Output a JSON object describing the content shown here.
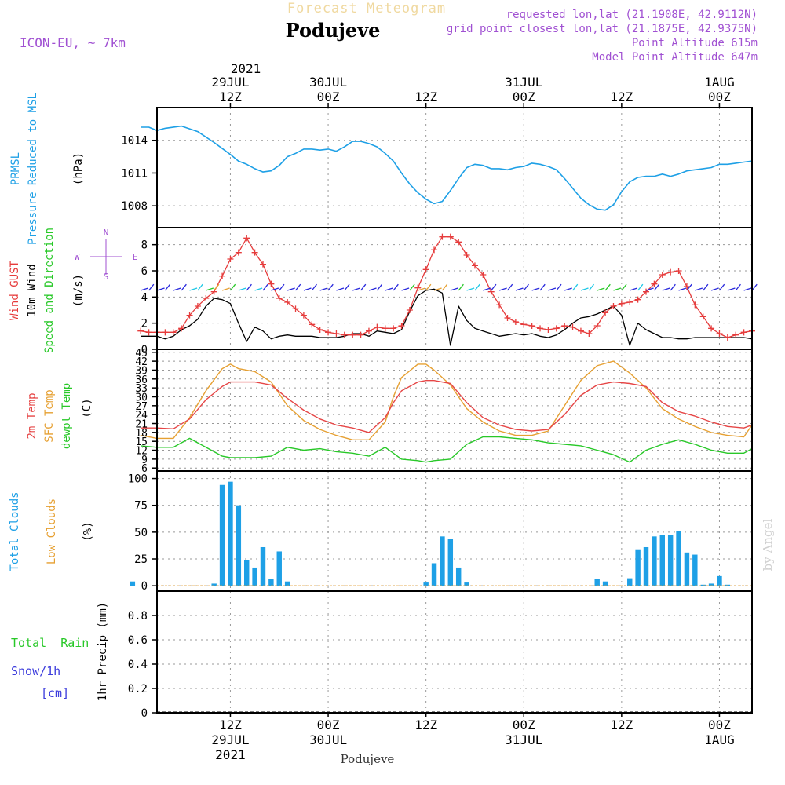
{
  "header": {
    "title_faint": "Forecast Meteogram",
    "station": "Podujeve",
    "model": "ICON-EU, ~ 7km",
    "requested": "requested lon,lat (21.1908E, 42.9112N)",
    "gridpoint": "grid point closest lon,lat (21.1875E, 42.9375N)",
    "point_alt": "Point Altitude 615m",
    "model_alt": "Model Point Altitude 647m",
    "footer_station": "Podujeve",
    "credit": "by Angel"
  },
  "colors": {
    "pressure": "#1ea0e6",
    "gust": "#e63c3c",
    "wind": "#000000",
    "temp2m": "#e64646",
    "sfc": "#e6a032",
    "dewpt": "#28c828",
    "clouds": "#1ea0e6",
    "low_clouds": "#e6a032",
    "rain": "#28c828",
    "snow": "#3c3cdc",
    "meta": "#a050d2"
  },
  "time_axis": {
    "top_year": "2021",
    "top": [
      {
        "hour": 12,
        "l1": "29JUL",
        "l2": "12Z"
      },
      {
        "hour": 24,
        "l1": "30JUL",
        "l2": "00Z"
      },
      {
        "hour": 36,
        "l1": "",
        "l2": "12Z"
      },
      {
        "hour": 48,
        "l1": "31JUL",
        "l2": "00Z"
      },
      {
        "hour": 60,
        "l1": "",
        "l2": "12Z"
      },
      {
        "hour": 72,
        "l1": "1AUG",
        "l2": "00Z"
      }
    ],
    "bottom": [
      {
        "hour": 12,
        "l1": "12Z",
        "l2": "29JUL",
        "l3": "2021"
      },
      {
        "hour": 24,
        "l1": "00Z",
        "l2": "30JUL",
        "l3": ""
      },
      {
        "hour": 36,
        "l1": "12Z",
        "l2": "",
        "l3": ""
      },
      {
        "hour": 48,
        "l1": "00Z",
        "l2": "31JUL",
        "l3": ""
      },
      {
        "hour": 60,
        "l1": "12Z",
        "l2": "",
        "l3": ""
      },
      {
        "hour": 72,
        "l1": "00Z",
        "l2": "1AUG",
        "l3": ""
      }
    ]
  },
  "panels": {
    "pressure": {
      "label1": "PRMSL",
      "label2": "Pressure Reduced to MSL",
      "unit": "(hPa)"
    },
    "wind": {
      "label_gust": "Wind GUST",
      "label_wind": "10m Wind",
      "label_dir": "Speed and Direction",
      "unit": "(m/s)",
      "compass_n": "N",
      "compass_e": "E",
      "compass_s": "S",
      "compass_w": "W"
    },
    "temp": {
      "label_2m": "2m Temp",
      "label_sfc": "SFC Temp",
      "label_dew": "dewpt Temp",
      "unit": "(C)"
    },
    "clouds": {
      "label_total": "Total Clouds",
      "label_low": "Low Clouds",
      "unit": "(%)"
    },
    "precip": {
      "label_rain": "Total  Rain",
      "label_snow": "Snow/1h",
      "label_cm": "[cm]",
      "unit": "1hr Precip (mm)"
    }
  },
  "chart_data": [
    {
      "type": "line",
      "name": "pressure",
      "ylim": [
        1006,
        1017
      ],
      "yticks": [
        1008,
        1011,
        1014
      ],
      "x": [
        1,
        2,
        3,
        4,
        6,
        8,
        10,
        12,
        13,
        14,
        15,
        16,
        17,
        18,
        19,
        20,
        21,
        22,
        23,
        24,
        25,
        26,
        27,
        28,
        29,
        30,
        31,
        32,
        33,
        34,
        35,
        36,
        37,
        38,
        39,
        40,
        41,
        42,
        43,
        44,
        45,
        46,
        47,
        48,
        49,
        50,
        51,
        52,
        53,
        54,
        55,
        56,
        57,
        58,
        59,
        60,
        61,
        62,
        63,
        64,
        65,
        66,
        67,
        68,
        69,
        70,
        71,
        72,
        73,
        74,
        75,
        76
      ],
      "series": [
        {
          "values": [
            1015.2,
            1015.2,
            1014.9,
            1015.1,
            1015.3,
            1014.8,
            1013.8,
            1012.7,
            1012.1,
            1011.8,
            1011.4,
            1011.1,
            1011.2,
            1011.7,
            1012.5,
            1012.8,
            1013.2,
            1013.2,
            1013.1,
            1013.2,
            1013.0,
            1013.4,
            1013.9,
            1013.9,
            1013.7,
            1013.4,
            1012.8,
            1012.1,
            1011.0,
            1010.0,
            1009.2,
            1008.6,
            1008.2,
            1008.4,
            1009.4,
            1010.5,
            1011.5,
            1011.8,
            1011.7,
            1011.4,
            1011.4,
            1011.3,
            1011.5,
            1011.6,
            1011.9,
            1011.8,
            1011.6,
            1011.3,
            1010.5,
            1009.6,
            1008.7,
            1008.1,
            1007.7,
            1007.6,
            1008.1,
            1009.3,
            1010.2,
            1010.6,
            1010.7,
            1010.7,
            1010.9,
            1010.7,
            1010.9,
            1011.2,
            1011.3,
            1011.4,
            1011.5,
            1011.8,
            1011.8,
            1011.9,
            1012.0,
            1012.1
          ]
        }
      ]
    },
    {
      "type": "line",
      "name": "wind",
      "ylim": [
        0,
        9.3
      ],
      "yticks": [
        0,
        2,
        4,
        6,
        8
      ],
      "x": [
        1,
        2,
        3,
        4,
        5,
        6,
        7,
        8,
        9,
        10,
        11,
        12,
        13,
        14,
        15,
        16,
        17,
        18,
        19,
        20,
        21,
        22,
        23,
        24,
        25,
        26,
        27,
        28,
        29,
        30,
        31,
        32,
        33,
        34,
        35,
        36,
        37,
        38,
        39,
        40,
        41,
        42,
        43,
        44,
        45,
        46,
        47,
        48,
        49,
        50,
        51,
        52,
        53,
        54,
        55,
        56,
        57,
        58,
        59,
        60,
        61,
        62,
        63,
        64,
        65,
        66,
        67,
        68,
        69,
        70,
        71,
        72,
        73,
        74,
        75,
        76
      ],
      "series": [
        {
          "name": "gust",
          "values": [
            1.4,
            1.3,
            1.3,
            1.3,
            1.3,
            1.6,
            2.6,
            3.3,
            3.9,
            4.4,
            5.6,
            6.9,
            7.4,
            8.5,
            7.4,
            6.5,
            5.0,
            3.9,
            3.6,
            3.1,
            2.6,
            1.9,
            1.5,
            1.3,
            1.2,
            1.1,
            1.1,
            1.1,
            1.4,
            1.7,
            1.6,
            1.6,
            1.8,
            3.0,
            4.7,
            6.1,
            7.6,
            8.6,
            8.6,
            8.2,
            7.2,
            6.4,
            5.7,
            4.4,
            3.4,
            2.4,
            2.1,
            1.9,
            1.8,
            1.6,
            1.5,
            1.6,
            1.8,
            1.7,
            1.4,
            1.2,
            1.8,
            2.8,
            3.3,
            3.5,
            3.6,
            3.8,
            4.4,
            5.0,
            5.7,
            5.9,
            6.0,
            4.8,
            3.4,
            2.5,
            1.6,
            1.2,
            0.9,
            1.1,
            1.3,
            1.4
          ]
        },
        {
          "name": "wind",
          "values": [
            1.0,
            1.0,
            1.0,
            0.8,
            1.0,
            1.5,
            1.8,
            2.3,
            3.3,
            3.9,
            3.8,
            3.5,
            2.0,
            0.6,
            1.7,
            1.4,
            0.8,
            1.0,
            1.1,
            1.0,
            1.0,
            1.0,
            0.9,
            0.9,
            0.9,
            1.0,
            1.2,
            1.2,
            1.0,
            1.4,
            1.3,
            1.2,
            1.5,
            2.9,
            4.1,
            4.5,
            4.6,
            4.3,
            0.3,
            3.3,
            2.2,
            1.6,
            1.4,
            1.2,
            1.0,
            1.1,
            1.2,
            1.1,
            1.2,
            1.0,
            0.9,
            1.1,
            1.5,
            2.0,
            2.4,
            2.5,
            2.7,
            3.0,
            3.3,
            2.6,
            0.3,
            2.0,
            1.5,
            1.2,
            0.9,
            0.9,
            0.8,
            0.8,
            0.9,
            0.9,
            0.9,
            0.9,
            0.9,
            0.9,
            0.9,
            0.8
          ]
        }
      ]
    },
    {
      "type": "line",
      "name": "temperature",
      "ylim": [
        5,
        46
      ],
      "yticks": [
        6,
        9,
        12,
        15,
        18,
        21,
        24,
        27,
        30,
        33,
        36,
        39,
        42,
        45
      ],
      "x": [
        1,
        3,
        5,
        7,
        9,
        11,
        12,
        13,
        15,
        17,
        19,
        21,
        23,
        25,
        27,
        29,
        31,
        32,
        33,
        35,
        36,
        37,
        39,
        41,
        43,
        45,
        47,
        49,
        51,
        53,
        55,
        57,
        59,
        61,
        63,
        65,
        67,
        69,
        71,
        73,
        75,
        76
      ],
      "series": [
        {
          "name": "2m Temp",
          "values": [
            19.5,
            19.5,
            19.2,
            22.5,
            29.0,
            33.5,
            35.0,
            35.0,
            35.0,
            34.0,
            29.5,
            25.5,
            22.5,
            20.5,
            19.5,
            18.0,
            23.0,
            28.0,
            32.0,
            35.0,
            35.5,
            35.5,
            34.5,
            28.0,
            23.0,
            20.5,
            19.0,
            18.5,
            19.0,
            24.0,
            30.5,
            34.0,
            35.0,
            34.5,
            33.5,
            28.0,
            25.0,
            23.5,
            21.5,
            20.0,
            19.5,
            20.5
          ]
        },
        {
          "name": "SFC Temp",
          "values": [
            17.0,
            16.0,
            16.0,
            23.0,
            32.0,
            39.5,
            41.0,
            39.5,
            38.5,
            35.0,
            27.0,
            22.0,
            19.0,
            17.0,
            15.5,
            15.5,
            21.5,
            30.0,
            36.5,
            41.0,
            41.0,
            39.0,
            34.0,
            26.0,
            21.5,
            18.5,
            17.0,
            17.0,
            18.5,
            27.0,
            35.5,
            40.5,
            42.0,
            38.0,
            33.0,
            26.0,
            22.5,
            20.0,
            18.0,
            17.0,
            16.5,
            20.5
          ]
        },
        {
          "name": "dewpt Temp",
          "values": [
            13.5,
            13.0,
            13.0,
            16.0,
            13.0,
            10.0,
            9.5,
            9.5,
            9.5,
            10.0,
            13.0,
            12.0,
            12.5,
            11.5,
            11.0,
            10.0,
            13.0,
            11.0,
            9.0,
            8.5,
            8.0,
            8.5,
            9.0,
            14.0,
            16.5,
            16.5,
            16.0,
            15.5,
            14.5,
            14.0,
            13.5,
            12.0,
            10.5,
            8.0,
            12.0,
            14.0,
            15.5,
            14.0,
            12.0,
            11.0,
            11.0,
            12.5
          ]
        }
      ]
    },
    {
      "type": "bar",
      "name": "clouds",
      "ylim": [
        -5,
        107
      ],
      "yticks": [
        0,
        25,
        50,
        75,
        100
      ],
      "x": [
        0,
        10,
        11,
        12,
        13,
        14,
        15,
        16,
        17,
        18,
        19,
        36,
        37,
        38,
        39,
        40,
        41,
        57,
        58,
        61,
        62,
        63,
        64,
        65,
        66,
        67,
        68,
        69,
        70,
        71,
        72,
        73
      ],
      "values": [
        4,
        2,
        94,
        97,
        75,
        24,
        17,
        36,
        6,
        32,
        4,
        3,
        21,
        46,
        44,
        17,
        3,
        6,
        4,
        7,
        34,
        36,
        46,
        47,
        47,
        51,
        31,
        29,
        1,
        2,
        9,
        1
      ]
    },
    {
      "type": "bar",
      "name": "precip",
      "ylim": [
        0,
        1
      ],
      "yticks": [
        0,
        0.2,
        0.4,
        0.6,
        0.8
      ],
      "x": [],
      "values": []
    }
  ]
}
